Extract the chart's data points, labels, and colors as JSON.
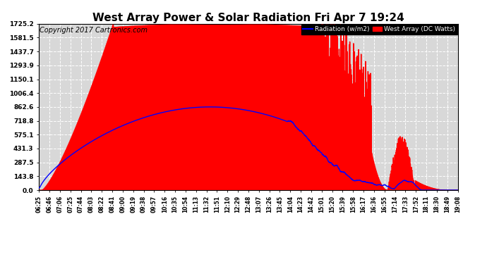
{
  "title": "West Array Power & Solar Radiation Fri Apr 7 19:24",
  "copyright": "Copyright 2017 Cartronics.com",
  "legend_labels": [
    "Radiation (w/m2)",
    "West Array (DC Watts)"
  ],
  "y_tick_values": [
    0.0,
    143.8,
    287.5,
    431.3,
    575.1,
    718.8,
    862.6,
    1006.4,
    1150.1,
    1293.9,
    1437.7,
    1581.5,
    1725.2
  ],
  "y_max": 1725.2,
  "y_min": 0.0,
  "background_color": "#ffffff",
  "plot_bg_color": "#d8d8d8",
  "grid_color": "#ffffff",
  "title_fontsize": 11,
  "copyright_fontsize": 7,
  "x_tick_labels": [
    "06:25",
    "06:46",
    "07:06",
    "07:25",
    "07:44",
    "08:03",
    "08:22",
    "08:41",
    "09:00",
    "09:19",
    "09:38",
    "09:57",
    "10:16",
    "10:35",
    "10:54",
    "11:13",
    "11:32",
    "11:51",
    "12:10",
    "12:29",
    "12:48",
    "13:07",
    "13:26",
    "13:45",
    "14:04",
    "14:23",
    "14:42",
    "15:01",
    "15:20",
    "15:39",
    "15:58",
    "16:17",
    "16:36",
    "16:55",
    "17:14",
    "17:33",
    "17:52",
    "18:11",
    "18:30",
    "18:49",
    "19:08"
  ],
  "radiation_color": "blue",
  "power_color": "red",
  "num_points": 2000
}
